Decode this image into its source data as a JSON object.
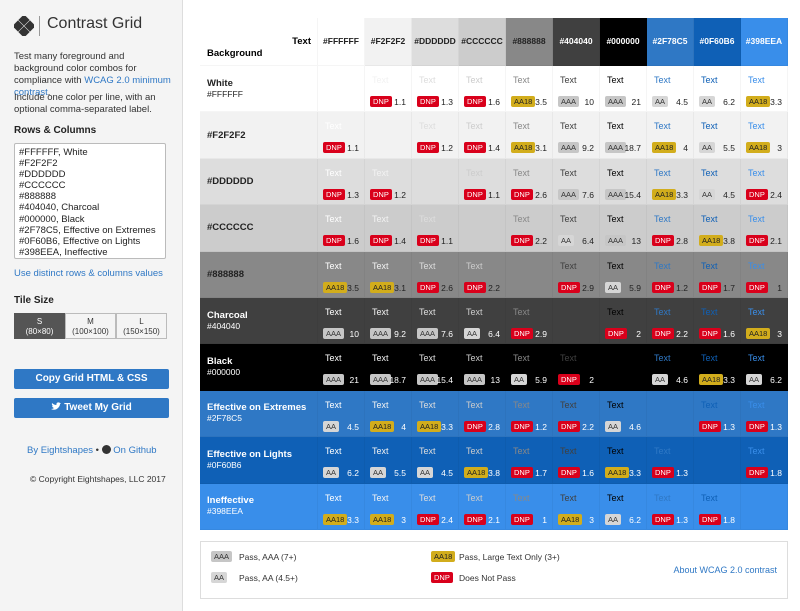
{
  "sidebar": {
    "logo_text": "Contrast Grid",
    "intro": {
      "before": "Test many foreground and background color combos for compliance with ",
      "link": "WCAG 2.0 minimum contrast",
      "after": "."
    },
    "include_note": "Include one color per line, with an optional comma-separated label.",
    "rows_heading": "Rows & Columns",
    "input_lines": [
      "#FFFFFF, White",
      "#F2F2F2",
      "#DDDDDD",
      "#CCCCCC",
      "#888888",
      "#404040, Charcoal",
      "#000000, Black",
      "#2F78C5, Effective on Extremes",
      "#0F60B6, Effective on Lights",
      "#398EEA, Ineffective"
    ],
    "distinct_link": "Use distinct rows & columns values",
    "tile_heading": "Tile Size",
    "tile_sizes": [
      {
        "letter": "S",
        "size": "(80×80)"
      },
      {
        "letter": "M",
        "size": "(100×100)"
      },
      {
        "letter": "L",
        "size": "(150×150)"
      }
    ],
    "selected_tile": 0,
    "copy_button": "Copy Grid HTML & CSS",
    "tweet_button": "Tweet My Grid",
    "by_link": "By Eightshapes",
    "separator": "•",
    "github_link": "On Github",
    "copyright": "© Copyright Eightshapes, LLC 2017"
  },
  "grid": {
    "header_text": "Text",
    "header_background": "Background",
    "sample_text": "Text",
    "columns": [
      "#FFFFFF",
      "#F2F2F2",
      "#DDDDDD",
      "#CCCCCC",
      "#888888",
      "#404040",
      "#000000",
      "#2F78C5",
      "#0F60B6",
      "#398EEA"
    ],
    "rows": [
      {
        "name": "White",
        "hex": "#FFFFFF",
        "cells": [
          null,
          {
            "badge": "DNP",
            "ratio": 1.1
          },
          {
            "badge": "DNP",
            "ratio": 1.3
          },
          {
            "badge": "DNP",
            "ratio": 1.6
          },
          {
            "badge": "AA18",
            "ratio": 3.5
          },
          {
            "badge": "AAA",
            "ratio": 10
          },
          {
            "badge": "AAA",
            "ratio": 21
          },
          {
            "badge": "AA",
            "ratio": 4.5
          },
          {
            "badge": "AA",
            "ratio": 6.2
          },
          {
            "badge": "AA18",
            "ratio": 3.3
          }
        ]
      },
      {
        "hex": "#F2F2F2",
        "cells": [
          {
            "badge": "DNP",
            "ratio": 1.1
          },
          null,
          {
            "badge": "DNP",
            "ratio": 1.2
          },
          {
            "badge": "DNP",
            "ratio": 1.4
          },
          {
            "badge": "AA18",
            "ratio": 3.1
          },
          {
            "badge": "AAA",
            "ratio": 9.2
          },
          {
            "badge": "AAA",
            "ratio": 18.7
          },
          {
            "badge": "AA18",
            "ratio": 4
          },
          {
            "badge": "AA",
            "ratio": 5.5
          },
          {
            "badge": "AA18",
            "ratio": 3
          }
        ]
      },
      {
        "hex": "#DDDDDD",
        "cells": [
          {
            "badge": "DNP",
            "ratio": 1.3
          },
          {
            "badge": "DNP",
            "ratio": 1.2
          },
          null,
          {
            "badge": "DNP",
            "ratio": 1.1
          },
          {
            "badge": "DNP",
            "ratio": 2.6
          },
          {
            "badge": "AAA",
            "ratio": 7.6
          },
          {
            "badge": "AAA",
            "ratio": 15.4
          },
          {
            "badge": "AA18",
            "ratio": 3.3
          },
          {
            "badge": "AA",
            "ratio": 4.5
          },
          {
            "badge": "DNP",
            "ratio": 2.4
          }
        ]
      },
      {
        "hex": "#CCCCCC",
        "cells": [
          {
            "badge": "DNP",
            "ratio": 1.6
          },
          {
            "badge": "DNP",
            "ratio": 1.4
          },
          {
            "badge": "DNP",
            "ratio": 1.1
          },
          null,
          {
            "badge": "DNP",
            "ratio": 2.2
          },
          {
            "badge": "AA",
            "ratio": 6.4
          },
          {
            "badge": "AAA",
            "ratio": 13
          },
          {
            "badge": "DNP",
            "ratio": 2.8
          },
          {
            "badge": "AA18",
            "ratio": 3.8
          },
          {
            "badge": "DNP",
            "ratio": 2.1
          }
        ]
      },
      {
        "hex": "#888888",
        "cells": [
          {
            "badge": "AA18",
            "ratio": 3.5
          },
          {
            "badge": "AA18",
            "ratio": 3.1
          },
          {
            "badge": "DNP",
            "ratio": 2.6
          },
          {
            "badge": "DNP",
            "ratio": 2.2
          },
          null,
          {
            "badge": "DNP",
            "ratio": 2.9
          },
          {
            "badge": "AA",
            "ratio": 5.9
          },
          {
            "badge": "DNP",
            "ratio": 1.2
          },
          {
            "badge": "DNP",
            "ratio": 1.7
          },
          {
            "badge": "DNP",
            "ratio": 1
          }
        ]
      },
      {
        "name": "Charcoal",
        "hex": "#404040",
        "cells": [
          {
            "badge": "AAA",
            "ratio": 10
          },
          {
            "badge": "AAA",
            "ratio": 9.2
          },
          {
            "badge": "AAA",
            "ratio": 7.6
          },
          {
            "badge": "AA",
            "ratio": 6.4
          },
          {
            "badge": "DNP",
            "ratio": 2.9
          },
          null,
          {
            "badge": "DNP",
            "ratio": 2
          },
          {
            "badge": "DNP",
            "ratio": 2.2
          },
          {
            "badge": "DNP",
            "ratio": 1.6
          },
          {
            "badge": "AA18",
            "ratio": 3
          }
        ]
      },
      {
        "name": "Black",
        "hex": "#000000",
        "cells": [
          {
            "badge": "AAA",
            "ratio": 21
          },
          {
            "badge": "AAA",
            "ratio": 18.7
          },
          {
            "badge": "AAA",
            "ratio": 15.4
          },
          {
            "badge": "AAA",
            "ratio": 13
          },
          {
            "badge": "AA",
            "ratio": 5.9
          },
          {
            "badge": "DNP",
            "ratio": 2
          },
          null,
          {
            "badge": "AA",
            "ratio": 4.6
          },
          {
            "badge": "AA18",
            "ratio": 3.3
          },
          {
            "badge": "AA",
            "ratio": 6.2
          }
        ]
      },
      {
        "name": "Effective on Extremes",
        "hex": "#2F78C5",
        "cells": [
          {
            "badge": "AA",
            "ratio": 4.5
          },
          {
            "badge": "AA18",
            "ratio": 4
          },
          {
            "badge": "AA18",
            "ratio": 3.3
          },
          {
            "badge": "DNP",
            "ratio": 2.8
          },
          {
            "badge": "DNP",
            "ratio": 1.2
          },
          {
            "badge": "DNP",
            "ratio": 2.2
          },
          {
            "badge": "AA",
            "ratio": 4.6
          },
          null,
          {
            "badge": "DNP",
            "ratio": 1.3
          },
          {
            "badge": "DNP",
            "ratio": 1.3
          }
        ]
      },
      {
        "name": "Effective on Lights",
        "hex": "#0F60B6",
        "cells": [
          {
            "badge": "AA",
            "ratio": 6.2
          },
          {
            "badge": "AA",
            "ratio": 5.5
          },
          {
            "badge": "AA",
            "ratio": 4.5
          },
          {
            "badge": "AA18",
            "ratio": 3.8
          },
          {
            "badge": "DNP",
            "ratio": 1.7
          },
          {
            "badge": "DNP",
            "ratio": 1.6
          },
          {
            "badge": "AA18",
            "ratio": 3.3
          },
          {
            "badge": "DNP",
            "ratio": 1.3
          },
          null,
          {
            "badge": "DNP",
            "ratio": 1.8
          }
        ]
      },
      {
        "name": "Ineffective",
        "hex": "#398EEA",
        "cells": [
          {
            "badge": "AA18",
            "ratio": 3.3
          },
          {
            "badge": "AA18",
            "ratio": 3
          },
          {
            "badge": "DNP",
            "ratio": 2.4
          },
          {
            "badge": "DNP",
            "ratio": 2.1
          },
          {
            "badge": "DNP",
            "ratio": 1
          },
          {
            "badge": "AA18",
            "ratio": 3
          },
          {
            "badge": "AA",
            "ratio": 6.2
          },
          {
            "badge": "DNP",
            "ratio": 1.3
          },
          {
            "badge": "DNP",
            "ratio": 1.8
          },
          null
        ]
      }
    ]
  },
  "legend": {
    "items": [
      {
        "badge": "AAA",
        "label": "Pass, AAA (7+)",
        "color": "#c6c6c6",
        "text_color": "#333333"
      },
      {
        "badge": "AA",
        "label": "Pass, AA (4.5+)",
        "color": "#d6d6d6",
        "text_color": "#333333"
      },
      {
        "badge": "AA18",
        "label": "Pass, Large Text Only (3+)",
        "color": "#d2ad1c",
        "text_color": "#222222"
      },
      {
        "badge": "DNP",
        "label": "Does Not Pass",
        "color": "#d9001b",
        "text_color": "#ffffff"
      }
    ],
    "about_link": "About WCAG 2.0 contrast"
  }
}
